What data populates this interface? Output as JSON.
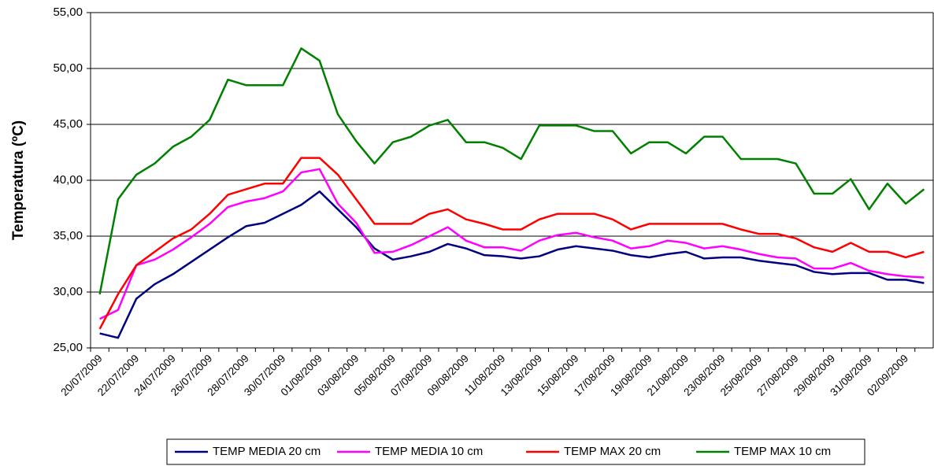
{
  "chart_data": {
    "type": "line",
    "y_label": "Temperatura (ºC)",
    "categories": [
      "20/07/2009",
      null,
      "22/07/2009",
      null,
      "24/07/2009",
      null,
      "26/07/2009",
      null,
      "28/07/2009",
      null,
      "30/07/2009",
      null,
      "01/08/2009",
      null,
      "03/08/2009",
      null,
      "05/08/2009",
      null,
      "07/08/2009",
      null,
      "09/08/2009",
      null,
      "11/08/2009",
      null,
      "13/08/2009",
      null,
      "15/08/2009",
      null,
      "17/08/2009",
      null,
      "19/08/2009",
      null,
      "21/08/2009",
      null,
      "23/08/2009",
      null,
      "25/08/2009",
      null,
      "27/08/2009",
      null,
      "29/08/2009",
      null,
      "31/08/2009",
      null,
      "02/09/2009",
      null
    ],
    "series": [
      {
        "name": "TEMP MEDIA 20 cm",
        "color": "#000080",
        "values": [
          26.3,
          25.9,
          29.4,
          30.7,
          31.6,
          32.7,
          33.8,
          34.9,
          35.9,
          36.2,
          37.0,
          37.8,
          39.0,
          37.4,
          35.8,
          33.9,
          32.9,
          33.2,
          33.6,
          34.3,
          33.9,
          33.3,
          33.2,
          33.0,
          33.2,
          33.8,
          34.1,
          33.9,
          33.7,
          33.3,
          33.1,
          33.4,
          33.6,
          33.0,
          33.1,
          33.1,
          32.8,
          32.6,
          32.4,
          31.8,
          31.6,
          31.7,
          31.7,
          31.1,
          31.1,
          30.8
        ]
      },
      {
        "name": "TEMP MEDIA 10 cm",
        "color": "#ff00ff",
        "values": [
          27.6,
          28.4,
          32.4,
          32.9,
          33.8,
          34.9,
          36.1,
          37.6,
          38.1,
          38.4,
          39.0,
          40.7,
          41.0,
          37.9,
          36.2,
          33.5,
          33.6,
          34.2,
          35.0,
          35.8,
          34.6,
          34.0,
          34.0,
          33.7,
          34.6,
          35.1,
          35.3,
          34.9,
          34.6,
          33.9,
          34.1,
          34.6,
          34.4,
          33.9,
          34.1,
          33.8,
          33.4,
          33.1,
          33.0,
          32.1,
          32.1,
          32.6,
          31.9,
          31.6,
          31.4,
          31.3
        ]
      },
      {
        "name": "TEMP MAX 20 cm",
        "color": "#ff0000",
        "values": [
          26.7,
          29.8,
          32.4,
          33.6,
          34.8,
          35.6,
          37.0,
          38.7,
          39.2,
          39.7,
          39.7,
          42.0,
          42.0,
          40.5,
          38.3,
          36.1,
          36.1,
          36.1,
          37.0,
          37.4,
          36.5,
          36.1,
          35.6,
          35.6,
          36.5,
          37.0,
          37.0,
          37.0,
          36.5,
          35.6,
          36.1,
          36.1,
          36.1,
          36.1,
          36.1,
          35.6,
          35.2,
          35.2,
          34.8,
          34.0,
          33.6,
          34.4,
          33.6,
          33.6,
          33.1,
          33.6
        ]
      },
      {
        "name": "TEMP MAX 10 cm",
        "color": "#008000",
        "values": [
          29.8,
          38.3,
          40.5,
          41.5,
          43.0,
          43.9,
          45.4,
          49.0,
          48.5,
          48.5,
          48.5,
          51.8,
          50.7,
          45.9,
          43.5,
          41.5,
          43.4,
          43.9,
          44.9,
          45.4,
          43.4,
          43.4,
          42.9,
          41.9,
          44.9,
          44.9,
          44.9,
          44.4,
          44.4,
          42.4,
          43.4,
          43.4,
          42.4,
          43.9,
          43.9,
          41.9,
          41.9,
          41.9,
          41.5,
          38.8,
          38.8,
          40.1,
          37.4,
          39.7,
          37.9,
          39.2
        ]
      }
    ],
    "ylim": [
      25,
      55
    ],
    "yticks": [
      {
        "value": 25,
        "label": "25,00"
      },
      {
        "value": 30,
        "label": "30,00"
      },
      {
        "value": 35,
        "label": "35,00"
      },
      {
        "value": 40,
        "label": "40,00"
      },
      {
        "value": 45,
        "label": "45,00"
      },
      {
        "value": 50,
        "label": "50,00"
      },
      {
        "value": 55,
        "label": "55,00"
      }
    ],
    "grid": true,
    "legend": "bottom"
  }
}
